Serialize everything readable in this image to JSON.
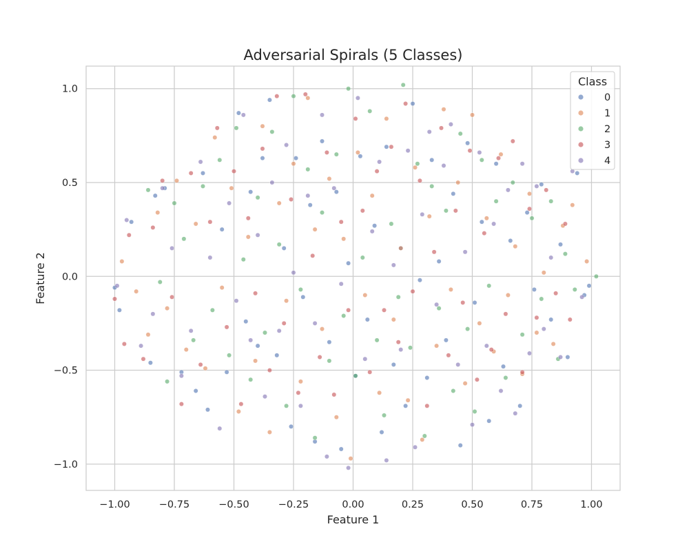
{
  "chart_data": {
    "type": "scatter",
    "title": "Adversarial Spirals (5 Classes)",
    "xlabel": "Feature 1",
    "ylabel": "Feature 2",
    "xlim": [
      -1.12,
      1.12
    ],
    "ylim": [
      -1.14,
      1.12
    ],
    "x_ticks": [
      -1.0,
      -0.75,
      -0.5,
      -0.25,
      0.0,
      0.25,
      0.5,
      0.75,
      1.0
    ],
    "x_tick_labels": [
      "−1.00",
      "−0.75",
      "−0.50",
      "−0.25",
      "0.00",
      "0.25",
      "0.50",
      "0.75",
      "1.00"
    ],
    "y_ticks": [
      -1.0,
      -0.5,
      0.0,
      0.5,
      1.0
    ],
    "y_tick_labels": [
      "−1.0",
      "−0.5",
      "0.0",
      "0.5",
      "1.0"
    ],
    "grid": true,
    "legend": {
      "title": "Class",
      "position": "top-right"
    },
    "point_opacity": 0.6,
    "series": [
      {
        "name": "0",
        "color": "#4c72b0",
        "points": [
          [
            -1.0,
            -0.06
          ],
          [
            -0.98,
            -0.18
          ],
          [
            -0.93,
            0.29
          ],
          [
            -0.85,
            -0.46
          ],
          [
            -0.83,
            0.43
          ],
          [
            -0.79,
            0.47
          ],
          [
            -0.72,
            -0.51
          ],
          [
            -0.66,
            -0.61
          ],
          [
            -0.63,
            0.55
          ],
          [
            -0.61,
            -0.71
          ],
          [
            -0.55,
            0.25
          ],
          [
            -0.53,
            -0.51
          ],
          [
            -0.48,
            0.87
          ],
          [
            -0.45,
            -0.24
          ],
          [
            -0.43,
            0.45
          ],
          [
            -0.4,
            -0.37
          ],
          [
            -0.38,
            0.63
          ],
          [
            -0.35,
            0.94
          ],
          [
            -0.32,
            -0.42
          ],
          [
            -0.29,
            0.15
          ],
          [
            -0.26,
            -0.8
          ],
          [
            -0.24,
            0.63
          ],
          [
            -0.21,
            -0.11
          ],
          [
            -0.18,
            0.38
          ],
          [
            -0.16,
            -0.88
          ],
          [
            -0.13,
            0.72
          ],
          [
            -0.1,
            -0.35
          ],
          [
            -0.07,
            0.45
          ],
          [
            -0.05,
            -0.92
          ],
          [
            -0.02,
            0.07
          ],
          [
            0.01,
            -0.53
          ],
          [
            0.03,
            0.64
          ],
          [
            0.06,
            -0.23
          ],
          [
            0.09,
            0.27
          ],
          [
            0.12,
            -0.83
          ],
          [
            0.14,
            0.69
          ],
          [
            0.17,
            -0.47
          ],
          [
            0.2,
            0.15
          ],
          [
            0.22,
            -0.69
          ],
          [
            0.25,
            0.92
          ],
          [
            0.28,
            -0.02
          ],
          [
            0.31,
            -0.54
          ],
          [
            0.33,
            0.62
          ],
          [
            0.36,
            0.08
          ],
          [
            0.39,
            -0.34
          ],
          [
            0.42,
            0.44
          ],
          [
            0.45,
            -0.9
          ],
          [
            0.48,
            0.71
          ],
          [
            0.51,
            -0.14
          ],
          [
            0.54,
            0.29
          ],
          [
            0.57,
            -0.77
          ],
          [
            0.6,
            0.6
          ],
          [
            0.63,
            -0.48
          ],
          [
            0.66,
            0.19
          ],
          [
            0.7,
            -0.69
          ],
          [
            0.73,
            0.34
          ],
          [
            0.76,
            -0.07
          ],
          [
            0.79,
            0.49
          ],
          [
            0.83,
            -0.23
          ],
          [
            0.87,
            0.17
          ],
          [
            0.9,
            -0.43
          ],
          [
            0.94,
            0.55
          ],
          [
            0.97,
            -0.1
          ],
          [
            0.99,
            -0.05
          ]
        ]
      },
      {
        "name": "1",
        "color": "#dd8452",
        "points": [
          [
            -0.97,
            0.08
          ],
          [
            -0.91,
            -0.08
          ],
          [
            -0.86,
            -0.31
          ],
          [
            -0.82,
            0.34
          ],
          [
            -0.78,
            -0.17
          ],
          [
            -0.74,
            0.51
          ],
          [
            -0.7,
            -0.39
          ],
          [
            -0.66,
            0.28
          ],
          [
            -0.62,
            -0.49
          ],
          [
            -0.58,
            0.74
          ],
          [
            -0.55,
            -0.06
          ],
          [
            -0.51,
            0.47
          ],
          [
            -0.48,
            -0.72
          ],
          [
            -0.44,
            0.21
          ],
          [
            -0.41,
            -0.45
          ],
          [
            -0.38,
            0.8
          ],
          [
            -0.35,
            -0.83
          ],
          [
            -0.31,
            0.39
          ],
          [
            -0.28,
            -0.13
          ],
          [
            -0.25,
            0.6
          ],
          [
            -0.22,
            -0.56
          ],
          [
            -0.19,
            0.95
          ],
          [
            -0.16,
            0.25
          ],
          [
            -0.13,
            -0.28
          ],
          [
            -0.1,
            0.52
          ],
          [
            -0.07,
            -0.75
          ],
          [
            -0.04,
            0.2
          ],
          [
            -0.01,
            -0.97
          ],
          [
            0.02,
            0.66
          ],
          [
            0.05,
            -0.1
          ],
          [
            0.08,
            0.43
          ],
          [
            0.11,
            -0.62
          ],
          [
            0.14,
            0.84
          ],
          [
            0.17,
            -0.23
          ],
          [
            0.2,
            0.15
          ],
          [
            0.23,
            -0.66
          ],
          [
            0.26,
            0.58
          ],
          [
            0.29,
            -0.87
          ],
          [
            0.32,
            0.32
          ],
          [
            0.35,
            -0.37
          ],
          [
            0.38,
            0.89
          ],
          [
            0.41,
            -0.07
          ],
          [
            0.44,
            0.5
          ],
          [
            0.47,
            -0.57
          ],
          [
            0.5,
            0.86
          ],
          [
            0.53,
            -0.25
          ],
          [
            0.56,
            0.31
          ],
          [
            0.59,
            -0.4
          ],
          [
            0.62,
            0.65
          ],
          [
            0.65,
            -0.1
          ],
          [
            0.68,
            0.16
          ],
          [
            0.71,
            -0.52
          ],
          [
            0.74,
            0.44
          ],
          [
            0.77,
            -0.3
          ],
          [
            0.8,
            0.02
          ],
          [
            0.84,
            -0.36
          ],
          [
            0.88,
            0.27
          ],
          [
            0.92,
            0.38
          ],
          [
            0.98,
            0.08
          ]
        ]
      },
      {
        "name": "2",
        "color": "#55a868",
        "points": [
          [
            -0.86,
            0.46
          ],
          [
            -0.81,
            -0.03
          ],
          [
            -0.78,
            -0.56
          ],
          [
            -0.75,
            0.39
          ],
          [
            -0.71,
            0.2
          ],
          [
            -0.67,
            -0.34
          ],
          [
            -0.63,
            0.48
          ],
          [
            -0.59,
            -0.18
          ],
          [
            -0.56,
            0.62
          ],
          [
            -0.52,
            -0.42
          ],
          [
            -0.49,
            0.79
          ],
          [
            -0.46,
            0.09
          ],
          [
            -0.43,
            -0.55
          ],
          [
            -0.4,
            0.42
          ],
          [
            -0.37,
            -0.3
          ],
          [
            -0.34,
            0.77
          ],
          [
            -0.31,
            0.17
          ],
          [
            -0.28,
            -0.69
          ],
          [
            -0.25,
            0.96
          ],
          [
            -0.22,
            -0.07
          ],
          [
            -0.19,
            0.57
          ],
          [
            -0.16,
            -0.86
          ],
          [
            -0.13,
            0.34
          ],
          [
            -0.1,
            -0.45
          ],
          [
            -0.07,
            0.65
          ],
          [
            -0.04,
            -0.21
          ],
          [
            -0.02,
            1.0
          ],
          [
            0.01,
            -0.53
          ],
          [
            0.04,
            0.1
          ],
          [
            0.07,
            0.88
          ],
          [
            0.1,
            -0.34
          ],
          [
            0.13,
            -0.74
          ],
          [
            0.16,
            0.28
          ],
          [
            0.19,
            -0.11
          ],
          [
            0.21,
            1.02
          ],
          [
            0.24,
            -0.38
          ],
          [
            0.27,
            0.6
          ],
          [
            0.3,
            -0.85
          ],
          [
            0.33,
            0.48
          ],
          [
            0.36,
            -0.17
          ],
          [
            0.39,
            0.35
          ],
          [
            0.42,
            -0.61
          ],
          [
            0.45,
            0.76
          ],
          [
            0.48,
            -0.28
          ],
          [
            0.51,
            -0.72
          ],
          [
            0.54,
            0.62
          ],
          [
            0.57,
            -0.05
          ],
          [
            0.6,
            0.4
          ],
          [
            0.64,
            -0.54
          ],
          [
            0.67,
            0.5
          ],
          [
            0.71,
            -0.31
          ],
          [
            0.75,
            0.31
          ],
          [
            0.79,
            -0.12
          ],
          [
            0.83,
            0.4
          ],
          [
            0.86,
            -0.44
          ],
          [
            0.89,
            0.12
          ],
          [
            0.93,
            -0.07
          ],
          [
            1.02,
            0.0
          ]
        ]
      },
      {
        "name": "3",
        "color": "#c44e52",
        "points": [
          [
            -1.0,
            -0.12
          ],
          [
            -0.96,
            -0.36
          ],
          [
            -0.94,
            0.22
          ],
          [
            -0.88,
            -0.44
          ],
          [
            -0.84,
            0.26
          ],
          [
            -0.8,
            0.51
          ],
          [
            -0.76,
            -0.11
          ],
          [
            -0.72,
            -0.68
          ],
          [
            -0.68,
            0.55
          ],
          [
            -0.64,
            -0.47
          ],
          [
            -0.6,
            0.29
          ],
          [
            -0.57,
            0.79
          ],
          [
            -0.53,
            -0.27
          ],
          [
            -0.5,
            0.56
          ],
          [
            -0.47,
            -0.68
          ],
          [
            -0.44,
            0.31
          ],
          [
            -0.41,
            -0.09
          ],
          [
            -0.38,
            0.68
          ],
          [
            -0.35,
            -0.5
          ],
          [
            -0.32,
            0.96
          ],
          [
            -0.29,
            -0.25
          ],
          [
            -0.26,
            0.41
          ],
          [
            -0.23,
            -0.62
          ],
          [
            -0.2,
            0.97
          ],
          [
            -0.17,
            0.11
          ],
          [
            -0.14,
            -0.43
          ],
          [
            -0.11,
            0.66
          ],
          [
            -0.08,
            -0.63
          ],
          [
            -0.05,
            0.29
          ],
          [
            -0.02,
            -0.18
          ],
          [
            0.01,
            0.84
          ],
          [
            0.04,
            0.35
          ],
          [
            0.07,
            -0.51
          ],
          [
            0.1,
            0.56
          ],
          [
            0.13,
            -0.18
          ],
          [
            0.16,
            0.69
          ],
          [
            0.19,
            -0.35
          ],
          [
            0.22,
            0.92
          ],
          [
            0.25,
            -0.08
          ],
          [
            0.28,
            0.51
          ],
          [
            0.31,
            -0.69
          ],
          [
            0.34,
            0.13
          ],
          [
            0.37,
            0.79
          ],
          [
            0.4,
            -0.42
          ],
          [
            0.43,
            0.35
          ],
          [
            0.46,
            -0.14
          ],
          [
            0.49,
            0.67
          ],
          [
            0.52,
            -0.55
          ],
          [
            0.55,
            0.23
          ],
          [
            0.58,
            -0.39
          ],
          [
            0.61,
            0.63
          ],
          [
            0.64,
            -0.2
          ],
          [
            0.67,
            0.72
          ],
          [
            0.71,
            -0.51
          ],
          [
            0.74,
            0.36
          ],
          [
            0.77,
            -0.22
          ],
          [
            0.81,
            0.46
          ],
          [
            0.85,
            -0.09
          ],
          [
            0.89,
            0.28
          ],
          [
            0.91,
            -0.23
          ]
        ]
      },
      {
        "name": "4",
        "color": "#8172b3",
        "points": [
          [
            -0.99,
            -0.05
          ],
          [
            -0.95,
            0.3
          ],
          [
            -0.89,
            -0.37
          ],
          [
            -0.84,
            -0.2
          ],
          [
            -0.8,
            0.47
          ],
          [
            -0.76,
            0.15
          ],
          [
            -0.72,
            -0.53
          ],
          [
            -0.68,
            -0.29
          ],
          [
            -0.64,
            0.61
          ],
          [
            -0.6,
            0.1
          ],
          [
            -0.56,
            -0.81
          ],
          [
            -0.52,
            0.39
          ],
          [
            -0.49,
            -0.13
          ],
          [
            -0.46,
            0.86
          ],
          [
            -0.43,
            -0.34
          ],
          [
            -0.4,
            0.22
          ],
          [
            -0.37,
            -0.64
          ],
          [
            -0.34,
            0.5
          ],
          [
            -0.31,
            -0.29
          ],
          [
            -0.28,
            0.7
          ],
          [
            -0.25,
            0.02
          ],
          [
            -0.22,
            -0.69
          ],
          [
            -0.19,
            0.43
          ],
          [
            -0.16,
            -0.25
          ],
          [
            -0.13,
            0.86
          ],
          [
            -0.11,
            -0.96
          ],
          [
            -0.08,
            0.47
          ],
          [
            -0.05,
            -0.04
          ],
          [
            -0.02,
            -1.02
          ],
          [
            0.02,
            0.95
          ],
          [
            0.05,
            -0.44
          ],
          [
            0.08,
            0.24
          ],
          [
            0.11,
            0.61
          ],
          [
            0.14,
            -0.98
          ],
          [
            0.17,
            0.06
          ],
          [
            0.2,
            -0.39
          ],
          [
            0.23,
            0.67
          ],
          [
            0.26,
            -0.91
          ],
          [
            0.29,
            0.33
          ],
          [
            0.32,
            0.77
          ],
          [
            0.35,
            -0.15
          ],
          [
            0.38,
            0.59
          ],
          [
            0.41,
            0.81
          ],
          [
            0.44,
            -0.47
          ],
          [
            0.47,
            0.13
          ],
          [
            0.5,
            -0.79
          ],
          [
            0.53,
            0.66
          ],
          [
            0.56,
            -0.37
          ],
          [
            0.59,
            0.28
          ],
          [
            0.62,
            -0.61
          ],
          [
            0.65,
            0.46
          ],
          [
            0.68,
            -0.73
          ],
          [
            0.71,
            0.6
          ],
          [
            0.74,
            -0.41
          ],
          [
            0.77,
            0.48
          ],
          [
            0.8,
            -0.28
          ],
          [
            0.83,
            0.1
          ],
          [
            0.87,
            -0.43
          ],
          [
            0.92,
            0.56
          ],
          [
            0.96,
            -0.11
          ]
        ]
      }
    ]
  }
}
